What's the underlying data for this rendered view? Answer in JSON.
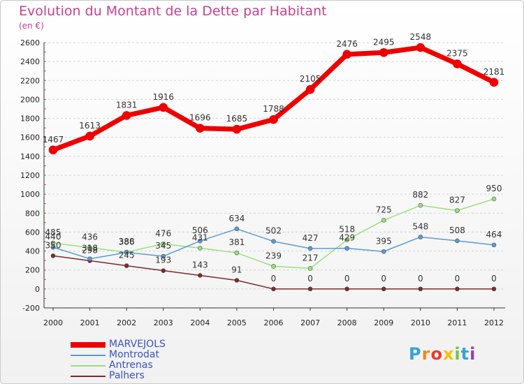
{
  "header": {
    "title": "Evolution du Montant de la Dette par Habitant",
    "subtitle": "(en €)"
  },
  "logo": {
    "text": "Proxiti",
    "letters": [
      "P",
      "r",
      "o",
      "x",
      "i",
      "t",
      "i"
    ],
    "colors": [
      "#3aa0d8",
      "#f08a1c",
      "#e83a2c",
      "#f2c200",
      "#7ac142",
      "#3aa0d8",
      "#8e44ad"
    ]
  },
  "chart_data": {
    "type": "line",
    "title": "Evolution du Montant de la Dette par Habitant",
    "subtitle": "(en €)",
    "xlabel": "",
    "ylabel": "",
    "x": [
      "2000",
      "2001",
      "2002",
      "2003",
      "2004",
      "2005",
      "2006",
      "2007",
      "2008",
      "2009",
      "2010",
      "2011",
      "2012"
    ],
    "ylim": [
      -200,
      2600
    ],
    "yticks": [
      -200,
      0,
      200,
      400,
      600,
      800,
      1000,
      1200,
      1400,
      1600,
      1800,
      2000,
      2200,
      2400,
      2600
    ],
    "grid": "horizontal",
    "legend_position": "bottom-left",
    "series": [
      {
        "name": "MARVEJOLS",
        "color": "#ee0000",
        "width": 7,
        "marker": 6,
        "values": [
          1467,
          1613,
          1831,
          1916,
          1696,
          1685,
          1788,
          2105,
          2476,
          2495,
          2548,
          2375,
          2181
        ]
      },
      {
        "name": "Montrodat",
        "color": "#5b9bd5",
        "width": 1.5,
        "marker": 3,
        "values": [
          440,
          318,
          386,
          345,
          506,
          634,
          502,
          427,
          429,
          395,
          548,
          508,
          464
        ]
      },
      {
        "name": "Antrenas",
        "color": "#99e07a",
        "width": 1.5,
        "marker": 3,
        "values": [
          485,
          436,
          388,
          476,
          431,
          381,
          239,
          217,
          518,
          725,
          882,
          827,
          950
        ]
      },
      {
        "name": "Palhers",
        "color": "#7a2a2a",
        "width": 1.5,
        "marker": 3,
        "values": [
          350,
          298,
          245,
          193,
          143,
          91,
          0,
          0,
          0,
          0,
          0,
          0,
          0
        ]
      }
    ]
  }
}
